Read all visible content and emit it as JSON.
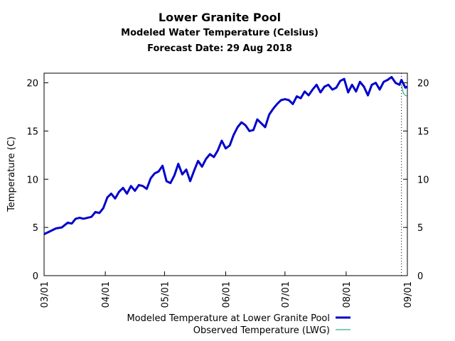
{
  "chart_data": {
    "type": "line",
    "title": "Lower Granite Pool",
    "subtitle": "Modeled Water Temperature (Celsius)",
    "forecast_line": "Forecast Date: 29 Aug 2018",
    "ylabel": "Temperature (C)",
    "xlabel": "",
    "ylim": [
      0,
      21
    ],
    "y_ticks": [
      0,
      5,
      10,
      15,
      20
    ],
    "y_tick_labels": [
      "0",
      "5",
      "10",
      "15",
      "20"
    ],
    "x_range": [
      "2018-03-01",
      "2018-09-01"
    ],
    "x_ticks": [
      "2018-03-01",
      "2018-04-01",
      "2018-05-01",
      "2018-06-01",
      "2018-07-01",
      "2018-08-01",
      "2018-09-01"
    ],
    "x_tick_labels": [
      "03/01",
      "04/01",
      "05/01",
      "06/01",
      "07/01",
      "08/01",
      "09/01"
    ],
    "forecast_date": "2018-08-29",
    "grid": false,
    "legend_position": "bottom-right",
    "series": [
      {
        "name": "Modeled Temperature at Lower Granite Pool",
        "color": "#0000cc",
        "x": [
          "2018-03-01",
          "2018-03-04",
          "2018-03-07",
          "2018-03-10",
          "2018-03-13",
          "2018-03-15",
          "2018-03-17",
          "2018-03-19",
          "2018-03-21",
          "2018-03-23",
          "2018-03-25",
          "2018-03-27",
          "2018-03-29",
          "2018-03-31",
          "2018-04-02",
          "2018-04-04",
          "2018-04-06",
          "2018-04-08",
          "2018-04-10",
          "2018-04-12",
          "2018-04-14",
          "2018-04-16",
          "2018-04-18",
          "2018-04-20",
          "2018-04-22",
          "2018-04-24",
          "2018-04-26",
          "2018-04-28",
          "2018-04-30",
          "2018-05-02",
          "2018-05-04",
          "2018-05-06",
          "2018-05-08",
          "2018-05-10",
          "2018-05-12",
          "2018-05-14",
          "2018-05-16",
          "2018-05-18",
          "2018-05-20",
          "2018-05-22",
          "2018-05-24",
          "2018-05-26",
          "2018-05-28",
          "2018-05-30",
          "2018-06-01",
          "2018-06-03",
          "2018-06-05",
          "2018-06-07",
          "2018-06-09",
          "2018-06-11",
          "2018-06-13",
          "2018-06-15",
          "2018-06-17",
          "2018-06-19",
          "2018-06-21",
          "2018-06-23",
          "2018-06-25",
          "2018-06-27",
          "2018-06-29",
          "2018-07-01",
          "2018-07-03",
          "2018-07-05",
          "2018-07-07",
          "2018-07-09",
          "2018-07-11",
          "2018-07-13",
          "2018-07-15",
          "2018-07-17",
          "2018-07-19",
          "2018-07-21",
          "2018-07-23",
          "2018-07-25",
          "2018-07-27",
          "2018-07-29",
          "2018-07-31",
          "2018-08-02",
          "2018-08-04",
          "2018-08-06",
          "2018-08-08",
          "2018-08-10",
          "2018-08-12",
          "2018-08-14",
          "2018-08-16",
          "2018-08-18",
          "2018-08-20",
          "2018-08-22",
          "2018-08-24",
          "2018-08-26",
          "2018-08-28",
          "2018-08-29",
          "2018-08-31",
          "2018-09-01"
        ],
        "y": [
          4.3,
          4.6,
          4.9,
          5.0,
          5.5,
          5.4,
          5.9,
          6.0,
          5.9,
          6.0,
          6.1,
          6.6,
          6.5,
          7.0,
          8.1,
          8.5,
          8.0,
          8.7,
          9.1,
          8.5,
          9.3,
          8.8,
          9.4,
          9.3,
          9.0,
          10.1,
          10.6,
          10.8,
          11.4,
          9.8,
          9.6,
          10.4,
          11.6,
          10.5,
          11.0,
          9.8,
          10.9,
          11.9,
          11.3,
          12.1,
          12.6,
          12.3,
          13.0,
          14.0,
          13.2,
          13.5,
          14.6,
          15.4,
          15.9,
          15.6,
          15.0,
          15.1,
          16.2,
          15.8,
          15.4,
          16.7,
          17.3,
          17.8,
          18.2,
          18.3,
          18.2,
          17.8,
          18.6,
          18.4,
          19.1,
          18.7,
          19.3,
          19.8,
          19.0,
          19.6,
          19.8,
          19.3,
          19.5,
          20.2,
          20.4,
          19.0,
          19.8,
          19.1,
          20.1,
          19.6,
          18.7,
          19.8,
          20.0,
          19.3,
          20.1,
          20.3,
          20.6,
          20.0,
          19.8,
          20.3,
          19.5,
          19.6
        ],
        "line_width": 3
      },
      {
        "name": "Observed Temperature (LWG)",
        "color": "#009e73",
        "x": [
          "2018-08-29",
          "2018-08-30",
          "2018-08-31",
          "2018-09-01"
        ],
        "y": [
          19.8,
          18.9,
          18.7,
          18.6
        ],
        "line_width": 1
      }
    ]
  }
}
